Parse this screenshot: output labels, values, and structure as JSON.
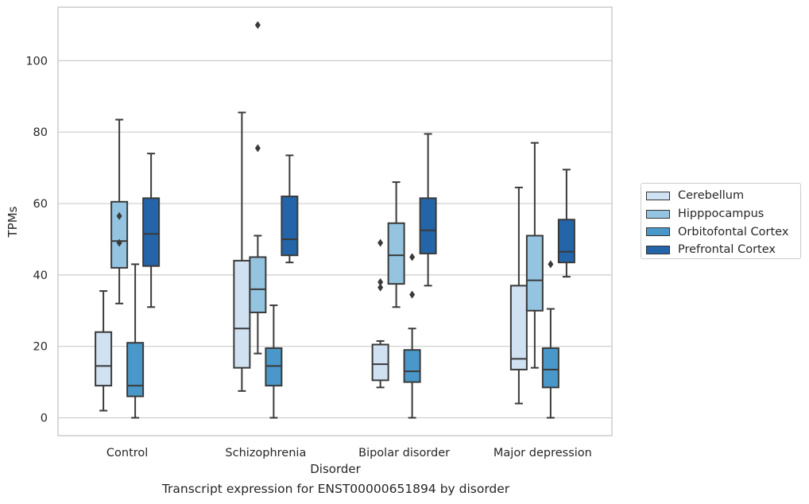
{
  "chart_data": {
    "type": "boxplot",
    "title": "",
    "caption": "Transcript expression for ENST00000651894 by disorder",
    "xlabel": "Disorder",
    "ylabel": "TPMs",
    "ylim": [
      -5,
      115
    ],
    "yticks": [
      0,
      20,
      40,
      60,
      80,
      100
    ],
    "grid": "horizontal",
    "legend_position": "right",
    "categories": [
      "Control",
      "Schizophrenia",
      "Bipolar disorder",
      "Major depression"
    ],
    "series": [
      {
        "name": "Cerebellum",
        "color": "#d0e1f2",
        "boxes": [
          {
            "whisker_low": 2,
            "q1": 9,
            "median": 14.5,
            "q3": 24,
            "whisker_high": 35.5,
            "outliers": []
          },
          {
            "whisker_low": 7.5,
            "q1": 14,
            "median": 25,
            "q3": 44,
            "whisker_high": 85.5,
            "outliers": []
          },
          {
            "whisker_low": 8.5,
            "q1": 10.5,
            "median": 15,
            "q3": 20.5,
            "whisker_high": 21.5,
            "outliers": [
              49,
              38,
              36.5
            ]
          },
          {
            "whisker_low": 4,
            "q1": 13.5,
            "median": 16.5,
            "q3": 37,
            "whisker_high": 64.5,
            "outliers": []
          }
        ]
      },
      {
        "name": "Hipppocampus",
        "color": "#94c4df",
        "boxes": [
          {
            "whisker_low": 32,
            "q1": 42,
            "median": 49.5,
            "q3": 60.5,
            "whisker_high": 83.5,
            "outliers": [
              56.5,
              49
            ]
          },
          {
            "whisker_low": 18,
            "q1": 29.5,
            "median": 36,
            "q3": 45,
            "whisker_high": 51,
            "outliers": [
              110,
              75.5
            ]
          },
          {
            "whisker_low": 31,
            "q1": 37.5,
            "median": 45.5,
            "q3": 54.5,
            "whisker_high": 66,
            "outliers": []
          },
          {
            "whisker_low": 14,
            "q1": 30,
            "median": 38.5,
            "q3": 51,
            "whisker_high": 77,
            "outliers": []
          }
        ]
      },
      {
        "name": "Orbitofontal Cortex",
        "color": "#4a98c9",
        "boxes": [
          {
            "whisker_low": 0,
            "q1": 6,
            "median": 9,
            "q3": 21,
            "whisker_high": 43,
            "outliers": []
          },
          {
            "whisker_low": 0,
            "q1": 9,
            "median": 14.5,
            "q3": 19.5,
            "whisker_high": 31.5,
            "outliers": []
          },
          {
            "whisker_low": 0,
            "q1": 10,
            "median": 13,
            "q3": 19,
            "whisker_high": 25,
            "outliers": [
              45,
              34.5
            ]
          },
          {
            "whisker_low": 0,
            "q1": 8.5,
            "median": 13.5,
            "q3": 19.5,
            "whisker_high": 30.5,
            "outliers": [
              43
            ]
          }
        ]
      },
      {
        "name": "Prefrontal Cortex",
        "color": "#2365a8",
        "boxes": [
          {
            "whisker_low": 31,
            "q1": 42.5,
            "median": 51.5,
            "q3": 61.5,
            "whisker_high": 74,
            "outliers": []
          },
          {
            "whisker_low": 43.5,
            "q1": 45.5,
            "median": 50,
            "q3": 62,
            "whisker_high": 73.5,
            "outliers": []
          },
          {
            "whisker_low": 37,
            "q1": 46,
            "median": 52.5,
            "q3": 61.5,
            "whisker_high": 79.5,
            "outliers": []
          },
          {
            "whisker_low": 39.5,
            "q1": 43.5,
            "median": 46.5,
            "q3": 55.5,
            "whisker_high": 69.5,
            "outliers": []
          }
        ]
      }
    ]
  }
}
